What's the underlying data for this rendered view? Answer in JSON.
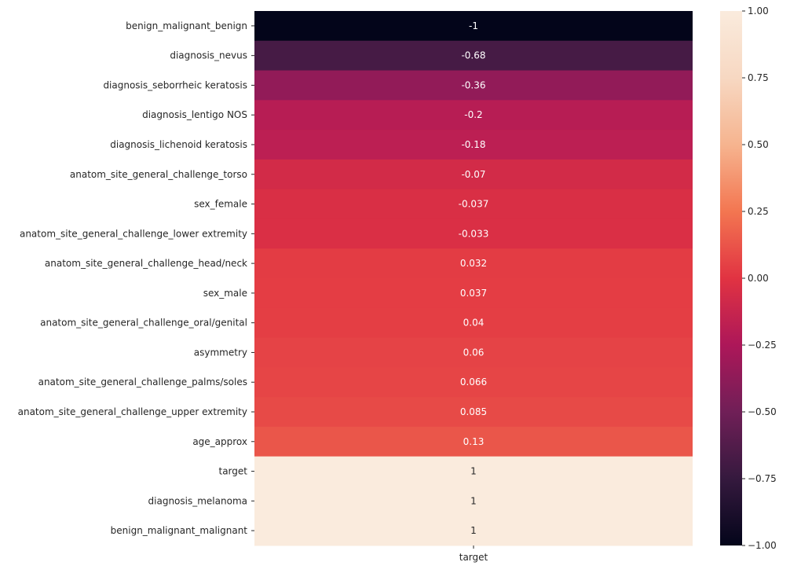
{
  "chart_data": {
    "type": "heatmap",
    "columns": [
      "target"
    ],
    "rows": [
      "benign_malignant_benign",
      "diagnosis_nevus",
      "diagnosis_seborrheic keratosis",
      "diagnosis_lentigo NOS",
      "diagnosis_lichenoid keratosis",
      "anatom_site_general_challenge_torso",
      "sex_female",
      "anatom_site_general_challenge_lower extremity",
      "anatom_site_general_challenge_head/neck",
      "sex_male",
      "anatom_site_general_challenge_oral/genital",
      "asymmetry",
      "anatom_site_general_challenge_palms/soles",
      "anatom_site_general_challenge_upper extremity",
      "age_approx",
      "target",
      "diagnosis_melanoma",
      "benign_malignant_malignant"
    ],
    "values": [
      -1,
      -0.68,
      -0.36,
      -0.2,
      -0.18,
      -0.07,
      -0.037,
      -0.033,
      0.032,
      0.037,
      0.04,
      0.06,
      0.066,
      0.085,
      0.13,
      1,
      1,
      1
    ],
    "labels": [
      "-1",
      "-0.68",
      "-0.36",
      "-0.2",
      "-0.18",
      "-0.07",
      "-0.037",
      "-0.033",
      "0.032",
      "0.037",
      "0.04",
      "0.06",
      "0.066",
      "0.085",
      "0.13",
      "1",
      "1",
      "1"
    ],
    "colormap": "rocket",
    "vmin": -1.0,
    "vmax": 1.0,
    "colorbar_ticks": [
      "1.00",
      "0.75",
      "0.50",
      "0.25",
      "0.00",
      "−0.25",
      "−0.50",
      "−0.75",
      "−1.00"
    ],
    "colorbar_tick_values": [
      1.0,
      0.75,
      0.5,
      0.25,
      0.0,
      -0.25,
      -0.5,
      -0.75,
      -1.0
    ],
    "title": "",
    "xlabel": "",
    "ylabel": ""
  }
}
